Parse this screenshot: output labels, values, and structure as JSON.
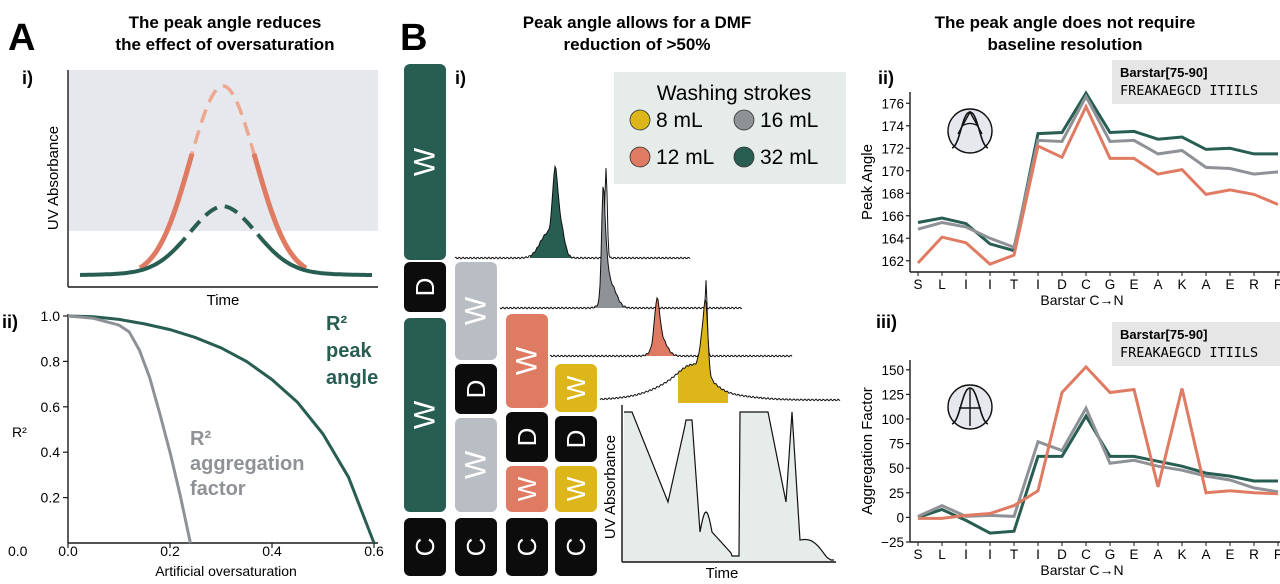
{
  "colors": {
    "teal": "#285e52",
    "grey": "#8e9297",
    "lightgrey": "#b9bec4",
    "salmon": "#e07b63",
    "peach": "#eda88f",
    "yellow": "#dcb61a",
    "shade": "#e6e8ee",
    "legendbg": "#e6ecea",
    "black": "#0c0c0c"
  },
  "panelA": {
    "letter": "A",
    "title_line1": "The peak angle reduces",
    "title_line2": "the effect of oversaturation",
    "sub_i": "i)",
    "sub_ii": "ii)"
  },
  "panelB": {
    "letter": "B",
    "title_line1": "Peak angle allows for a DMF",
    "title_line2": "reduction of >50%",
    "sub_i": "i)",
    "legend_title": "Washing strokes",
    "legend_items": [
      {
        "label": "8 mL",
        "color": "#dcb61a"
      },
      {
        "label": "16 mL",
        "color": "#8e9297"
      },
      {
        "label": "12 mL",
        "color": "#e07b63"
      },
      {
        "label": "32 mL",
        "color": "#285e52"
      }
    ]
  },
  "panelC": {
    "title_line1": "The peak angle does not require",
    "title_line2": "baseline resolution",
    "sub_ii": "ii)",
    "sub_iii": "iii)",
    "seq_name": "Barstar[75-90]",
    "seq_text": "FREAKAEGCD ITIILS"
  },
  "chart_data": [
    {
      "id": "A-i",
      "type": "line",
      "xlabel": "Time",
      "ylabel": "UV Absorbance",
      "title": "",
      "series": [
        {
          "style": "oversaturated Gaussian peak (detector ceiling)"
        },
        {
          "style": "flattened Gaussian peak"
        }
      ]
    },
    {
      "id": "A-ii",
      "type": "line",
      "xlabel": "Artificial oversaturation",
      "ylabel": "R²",
      "xlim": [
        0,
        0.6
      ],
      "ylim": [
        0,
        1
      ],
      "xticks": [
        "0.0",
        "0.2",
        "0.4",
        "0.6"
      ],
      "yticks": [
        "0.2",
        "0.4",
        "0.6",
        "0.8",
        "1.0"
      ],
      "series": [
        {
          "name": "R² peak angle",
          "label_lines": [
            "R²",
            "peak",
            "angle"
          ],
          "x": [
            0,
            0.05,
            0.1,
            0.15,
            0.2,
            0.25,
            0.3,
            0.35,
            0.4,
            0.45,
            0.5,
            0.55,
            0.6
          ],
          "y": [
            1.0,
            0.997,
            0.985,
            0.965,
            0.94,
            0.905,
            0.86,
            0.8,
            0.72,
            0.62,
            0.48,
            0.29,
            0.0
          ]
        },
        {
          "name": "R² aggregation factor",
          "label_lines": [
            "R²",
            "aggregation",
            "factor"
          ],
          "x": [
            0,
            0.05,
            0.1,
            0.12,
            0.14,
            0.16,
            0.18,
            0.2,
            0.22,
            0.24
          ],
          "y": [
            1.0,
            0.99,
            0.96,
            0.93,
            0.85,
            0.73,
            0.57,
            0.4,
            0.21,
            0.0
          ]
        }
      ]
    },
    {
      "id": "B-i",
      "type": "line",
      "xlabel": "Time",
      "ylabel": "UV Absorbance",
      "columns": [
        {
          "strokes": "32 mL",
          "blocks": [
            "W",
            "D",
            "W",
            "C"
          ]
        },
        {
          "strokes": "16 mL",
          "blocks": [
            "W",
            "D",
            "W",
            "C"
          ]
        },
        {
          "strokes": "12 mL",
          "blocks": [
            "W",
            "D",
            "W",
            "C"
          ]
        },
        {
          "strokes": "8 mL",
          "blocks": [
            "W",
            "D",
            "W",
            "C"
          ]
        }
      ]
    },
    {
      "id": "C-ii",
      "type": "line",
      "xlabel": "Barstar C→N",
      "ylabel": "Peak Angle",
      "ylim": [
        161,
        177
      ],
      "yticks": [
        "162",
        "164",
        "166",
        "168",
        "170",
        "172",
        "174",
        "176"
      ],
      "categories": [
        "S",
        "L",
        "I",
        "I",
        "T",
        "I",
        "D",
        "C",
        "G",
        "E",
        "A",
        "K",
        "A",
        "E",
        "R",
        "F"
      ],
      "series": [
        {
          "name": "32 mL",
          "values": [
            165.4,
            165.8,
            165.3,
            163.5,
            162.9,
            173.3,
            173.4,
            176.9,
            173.4,
            173.5,
            172.8,
            173.0,
            171.9,
            172.0,
            171.5,
            171.5
          ]
        },
        {
          "name": "16 mL",
          "values": [
            164.8,
            165.4,
            165.0,
            164.0,
            163.2,
            172.7,
            172.6,
            176.6,
            172.6,
            172.7,
            171.5,
            171.8,
            170.3,
            170.2,
            169.7,
            169.9
          ]
        },
        {
          "name": "12 mL",
          "values": [
            161.8,
            164.1,
            163.6,
            161.7,
            162.5,
            172.2,
            171.2,
            175.7,
            171.1,
            171.1,
            169.7,
            170.1,
            167.9,
            168.3,
            167.9,
            167.0
          ]
        }
      ]
    },
    {
      "id": "C-iii",
      "type": "line",
      "xlabel": "Barstar C→N",
      "ylabel": "Aggregation Factor",
      "ylim": [
        -25,
        160
      ],
      "yticks": [
        "−25",
        "0",
        "25",
        "50",
        "75",
        "100",
        "125",
        "150"
      ],
      "categories": [
        "S",
        "L",
        "I",
        "I",
        "T",
        "I",
        "D",
        "C",
        "G",
        "E",
        "A",
        "K",
        "A",
        "E",
        "R",
        "F"
      ],
      "series": [
        {
          "name": "32 mL",
          "values": [
            0,
            8,
            -3,
            -16,
            -14,
            62,
            62,
            103,
            62,
            62,
            57,
            52,
            45,
            42,
            37,
            37
          ]
        },
        {
          "name": "16 mL",
          "values": [
            1,
            12,
            1,
            2,
            1,
            77,
            68,
            111,
            55,
            58,
            52,
            48,
            42,
            38,
            30,
            26
          ]
        },
        {
          "name": "12 mL",
          "values": [
            -1,
            -1,
            2,
            4,
            12,
            27,
            127,
            153,
            127,
            130,
            31,
            131,
            25,
            27,
            25,
            24
          ]
        }
      ]
    }
  ]
}
